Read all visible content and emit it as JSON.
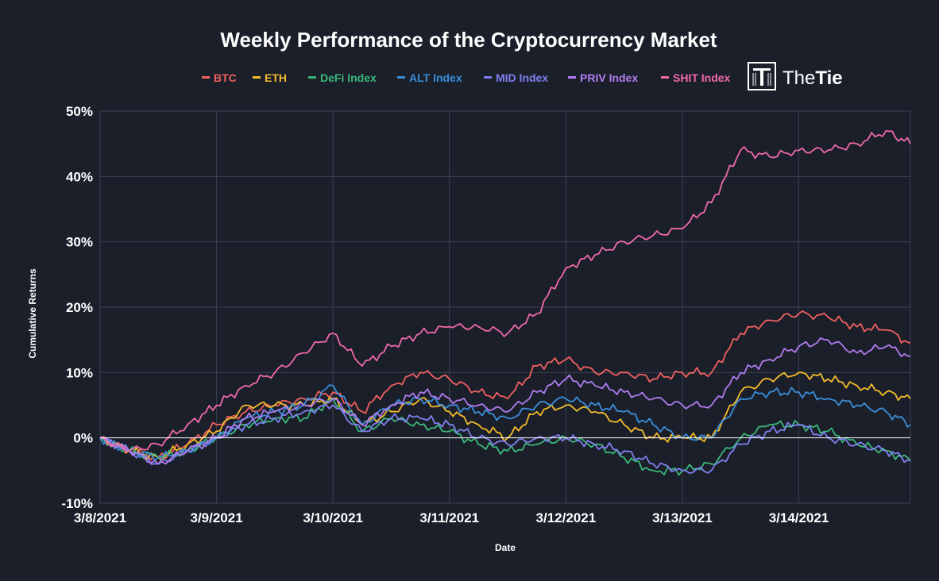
{
  "colors": {
    "background": "#1b1f2a",
    "grid": "#3a4050",
    "zero_line": "#ffffff",
    "text": "#ffffff"
  },
  "logo": {
    "name_plain": "The",
    "name_bold": "Tie",
    "icon": "thetie-logo-icon"
  },
  "chart_data": {
    "type": "line",
    "title": "Weekly Performance of the Cryptocurrency Market",
    "xlabel": "Date",
    "ylabel": "Cumulative Returns",
    "x_ticks": [
      "3/8/2021",
      "3/9/2021",
      "3/10/2021",
      "3/11/2021",
      "3/12/2021",
      "3/13/2021",
      "3/14/2021"
    ],
    "x_range": [
      "3/8/2021",
      "3/14/2021 23:00"
    ],
    "y_ticks": [
      50,
      40,
      30,
      20,
      10,
      0,
      -10
    ],
    "y_tick_labels": [
      "50%",
      "40%",
      "30%",
      "20%",
      "10%",
      "0%",
      "-10%"
    ],
    "ylim": [
      -10,
      50
    ],
    "grid": true,
    "legend_position": "top",
    "x_points": [
      "3/8 00:00",
      "3/8 06:00",
      "3/8 12:00",
      "3/8 18:00",
      "3/9 00:00",
      "3/9 06:00",
      "3/9 12:00",
      "3/9 18:00",
      "3/10 00:00",
      "3/10 06:00",
      "3/10 12:00",
      "3/10 18:00",
      "3/11 00:00",
      "3/11 06:00",
      "3/11 12:00",
      "3/11 18:00",
      "3/12 00:00",
      "3/12 06:00",
      "3/12 12:00",
      "3/12 18:00",
      "3/13 00:00",
      "3/13 06:00",
      "3/13 12:00",
      "3/13 18:00",
      "3/14 00:00",
      "3/14 06:00",
      "3/14 12:00",
      "3/14 18:00",
      "3/14 23:00"
    ],
    "series": [
      {
        "name": "BTC",
        "color": "#f0605f",
        "values": [
          0,
          -2,
          -3,
          -1,
          2,
          4,
          5,
          6,
          7,
          4,
          8,
          10,
          9,
          7,
          6,
          11,
          12,
          10,
          10,
          9,
          10,
          10,
          16,
          18,
          19,
          18.5,
          17,
          16.5,
          14.5
        ]
      },
      {
        "name": "ETH",
        "color": "#f5bc2a",
        "values": [
          0,
          -2,
          -3,
          -1,
          1,
          5,
          5,
          5,
          6,
          2,
          4,
          6,
          4,
          2,
          0,
          4,
          5,
          4,
          2,
          0,
          0,
          0,
          7,
          9,
          10,
          9,
          8,
          7,
          6
        ]
      },
      {
        "name": "DeFi Index",
        "color": "#3bb77a",
        "values": [
          0,
          -2,
          -3,
          -2,
          0,
          2,
          3,
          3,
          6,
          1,
          3,
          2,
          1,
          -1,
          -2,
          -1,
          0,
          -1,
          -3,
          -5,
          -5,
          -4,
          0,
          2,
          2,
          1,
          -1,
          -2,
          -3.5
        ]
      },
      {
        "name": "ALT Index",
        "color": "#3a8fdc",
        "values": [
          0,
          -2,
          -3,
          -2,
          0,
          3,
          4,
          5,
          8,
          2,
          5,
          6,
          5,
          4,
          3,
          5,
          6,
          5,
          4,
          2,
          0,
          0,
          6,
          7,
          7,
          6,
          5,
          4,
          2
        ]
      },
      {
        "name": "MID Index",
        "color": "#7f80f0",
        "values": [
          0,
          -2,
          -4,
          -2,
          0,
          2,
          3,
          4,
          5,
          1,
          3,
          3,
          2,
          0,
          -1,
          0,
          0,
          -1,
          -2,
          -4,
          -5,
          -5,
          -1,
          1,
          2,
          0,
          -1,
          -2,
          -3.5
        ]
      },
      {
        "name": "PRIV Index",
        "color": "#b07cf0",
        "values": [
          0,
          -2,
          -4,
          -2,
          0,
          3,
          4,
          5,
          6,
          2,
          5,
          7,
          6,
          5,
          4,
          7,
          9,
          8,
          7,
          6,
          5,
          5,
          10,
          12,
          14,
          15,
          13,
          14,
          12.5
        ]
      },
      {
        "name": "SHIT Index",
        "color": "#f06aa6",
        "values": [
          0,
          -2,
          -1,
          2,
          5,
          8,
          10,
          13,
          16,
          11,
          14,
          16,
          17,
          17,
          16,
          19,
          26,
          28,
          30,
          31,
          32,
          36,
          44,
          43,
          44,
          44,
          45,
          47,
          45
        ]
      }
    ]
  }
}
